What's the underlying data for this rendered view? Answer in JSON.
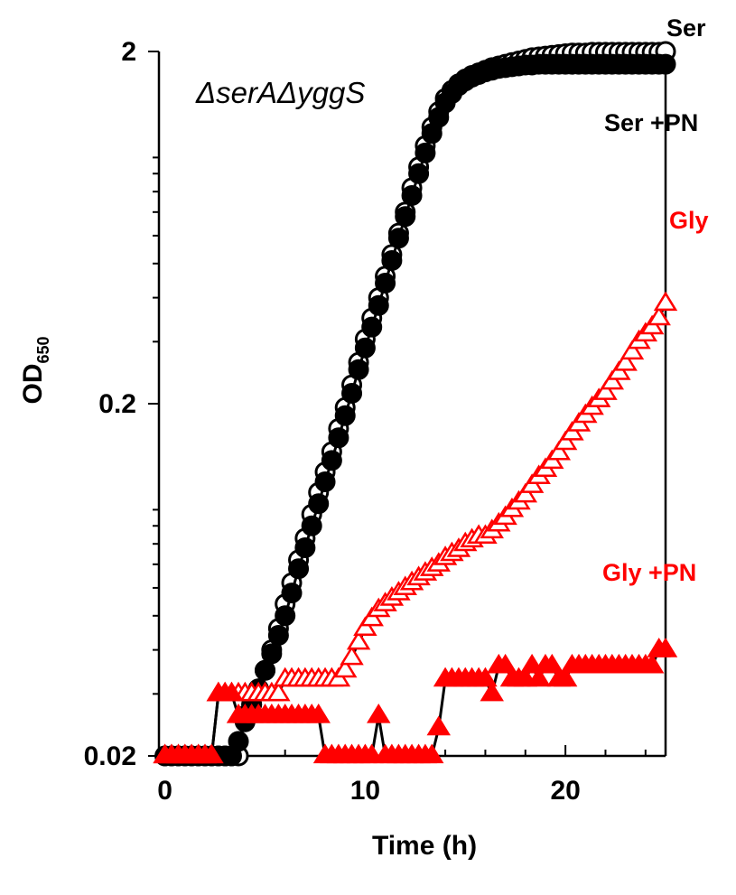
{
  "chart_data": {
    "type": "line",
    "title": "ΔserAΔyggS",
    "xlabel": "Time (h)",
    "ylabel": "OD",
    "ylabel_sub": "650",
    "x_scale": "linear",
    "y_scale": "log",
    "xlim": [
      -0.3,
      25
    ],
    "ylim": [
      0.02,
      2
    ],
    "x_ticks": [
      0,
      10,
      20
    ],
    "x_tick_labels": [
      "0",
      "10",
      "20"
    ],
    "y_ticks": [
      0.02,
      0.2,
      2
    ],
    "y_tick_labels": [
      "0.02",
      "0.2",
      "2"
    ],
    "grid": false,
    "legend": "none",
    "series": [
      {
        "name": "Ser",
        "marker": "open-circle",
        "color": "#000000",
        "x": [
          0,
          0.33,
          0.67,
          1,
          1.33,
          1.67,
          2,
          2.33,
          2.67,
          3,
          3.33,
          3.67,
          4,
          4.33,
          4.67,
          5,
          5.33,
          5.67,
          6,
          6.33,
          6.67,
          7,
          7.33,
          7.67,
          8,
          8.33,
          8.67,
          9,
          9.33,
          9.67,
          10,
          10.33,
          10.67,
          11,
          11.33,
          11.67,
          12,
          12.33,
          12.67,
          13,
          13.33,
          13.67,
          14,
          14.33,
          14.67,
          15,
          15.33,
          15.67,
          16,
          16.33,
          16.67,
          17,
          17.33,
          17.67,
          18,
          18.33,
          18.67,
          19,
          19.33,
          19.67,
          20,
          20.33,
          20.67,
          21,
          21.33,
          21.67,
          22,
          22.33,
          22.67,
          23,
          23.33,
          23.67,
          24,
          24.33,
          24.67,
          25
        ],
        "y": [
          0.02,
          0.02,
          0.02,
          0.02,
          0.02,
          0.02,
          0.02,
          0.02,
          0.02,
          0.02,
          0.02,
          0.02,
          0.026,
          0.028,
          0.031,
          0.035,
          0.04,
          0.046,
          0.054,
          0.062,
          0.072,
          0.083,
          0.097,
          0.112,
          0.128,
          0.146,
          0.17,
          0.195,
          0.226,
          0.262,
          0.305,
          0.35,
          0.4,
          0.46,
          0.53,
          0.61,
          0.7,
          0.82,
          0.94,
          1.08,
          1.22,
          1.35,
          1.47,
          1.55,
          1.62,
          1.67,
          1.71,
          1.74,
          1.77,
          1.8,
          1.82,
          1.84,
          1.86,
          1.88,
          1.9,
          1.92,
          1.93,
          1.94,
          1.95,
          1.96,
          1.97,
          1.98,
          1.98,
          1.98,
          1.99,
          1.99,
          1.99,
          1.99,
          1.99,
          1.99,
          1.99,
          1.99,
          1.99,
          1.99,
          1.99,
          2.0
        ]
      },
      {
        "name": "Ser +PN",
        "marker": "filled-circle",
        "color": "#000000",
        "x": [
          0,
          0.33,
          0.67,
          1,
          1.33,
          1.67,
          2,
          2.33,
          2.67,
          3,
          3.33,
          3.67,
          4,
          4.33,
          4.67,
          5,
          5.33,
          5.67,
          6,
          6.33,
          6.67,
          7,
          7.33,
          7.67,
          8,
          8.33,
          8.67,
          9,
          9.33,
          9.67,
          10,
          10.33,
          10.67,
          11,
          11.33,
          11.67,
          12,
          12.33,
          12.67,
          13,
          13.33,
          13.67,
          14,
          14.33,
          14.67,
          15,
          15.33,
          15.67,
          16,
          16.33,
          16.67,
          17,
          17.33,
          17.67,
          18,
          18.33,
          18.67,
          19,
          19.33,
          19.67,
          20,
          20.33,
          20.67,
          21,
          21.33,
          21.67,
          22,
          22.33,
          22.67,
          23,
          23.33,
          23.67,
          24,
          24.33,
          24.67,
          25
        ],
        "y": [
          0.02,
          0.02,
          0.02,
          0.02,
          0.02,
          0.02,
          0.02,
          0.02,
          0.02,
          0.02,
          0.02,
          0.022,
          0.025,
          0.028,
          0.031,
          0.035,
          0.039,
          0.044,
          0.05,
          0.058,
          0.068,
          0.078,
          0.09,
          0.104,
          0.12,
          0.138,
          0.16,
          0.185,
          0.214,
          0.25,
          0.288,
          0.33,
          0.38,
          0.44,
          0.51,
          0.59,
          0.68,
          0.78,
          0.9,
          1.03,
          1.17,
          1.3,
          1.43,
          1.52,
          1.6,
          1.65,
          1.69,
          1.72,
          1.75,
          1.77,
          1.79,
          1.8,
          1.81,
          1.82,
          1.83,
          1.83,
          1.84,
          1.84,
          1.84,
          1.84,
          1.84,
          1.84,
          1.84,
          1.84,
          1.84,
          1.84,
          1.84,
          1.84,
          1.84,
          1.84,
          1.84,
          1.84,
          1.84,
          1.84,
          1.84,
          1.84
        ]
      },
      {
        "name": "Gly",
        "marker": "open-triangle",
        "color": "#ff0000",
        "x": [
          0,
          0.33,
          0.67,
          1,
          1.33,
          1.67,
          2,
          2.33,
          2.67,
          3,
          3.33,
          3.67,
          4,
          4.33,
          4.67,
          5,
          5.33,
          5.67,
          6,
          6.33,
          6.67,
          7,
          7.33,
          7.67,
          8,
          8.33,
          8.67,
          9,
          9.33,
          9.67,
          10,
          10.33,
          10.67,
          11,
          11.33,
          11.67,
          12,
          12.33,
          12.67,
          13,
          13.33,
          13.67,
          14,
          14.33,
          14.67,
          15,
          15.33,
          15.67,
          16,
          16.33,
          16.67,
          17,
          17.33,
          17.67,
          18,
          18.33,
          18.67,
          19,
          19.33,
          19.67,
          20,
          20.33,
          20.67,
          21,
          21.33,
          21.67,
          22,
          22.33,
          22.67,
          23,
          23.33,
          23.67,
          24,
          24.33,
          24.67,
          25
        ],
        "y": [
          0.02,
          0.02,
          0.02,
          0.02,
          0.02,
          0.02,
          0.02,
          0.02,
          0.03,
          0.03,
          0.03,
          0.03,
          0.03,
          0.03,
          0.03,
          0.03,
          0.03,
          0.03,
          0.033,
          0.033,
          0.033,
          0.033,
          0.033,
          0.033,
          0.033,
          0.033,
          0.033,
          0.035,
          0.038,
          0.042,
          0.046,
          0.049,
          0.052,
          0.054,
          0.056,
          0.058,
          0.06,
          0.062,
          0.064,
          0.066,
          0.068,
          0.07,
          0.073,
          0.075,
          0.077,
          0.08,
          0.082,
          0.084,
          0.084,
          0.087,
          0.091,
          0.095,
          0.1,
          0.105,
          0.11,
          0.117,
          0.124,
          0.13,
          0.137,
          0.145,
          0.155,
          0.165,
          0.175,
          0.185,
          0.195,
          0.205,
          0.215,
          0.23,
          0.245,
          0.26,
          0.28,
          0.3,
          0.315,
          0.33,
          0.35,
          0.385
        ]
      },
      {
        "name": "Gly +PN",
        "marker": "filled-triangle",
        "color": "#ff0000",
        "x": [
          0,
          0.33,
          0.67,
          1,
          1.33,
          1.67,
          2,
          2.33,
          2.67,
          3,
          3.33,
          3.67,
          4,
          4.33,
          4.67,
          5,
          5.33,
          5.67,
          6,
          6.33,
          6.67,
          7,
          7.33,
          7.67,
          8,
          8.33,
          8.67,
          9,
          9.33,
          9.67,
          10,
          10.33,
          10.67,
          11,
          11.33,
          11.67,
          12,
          12.33,
          12.67,
          13,
          13.33,
          13.67,
          14,
          14.33,
          14.67,
          15,
          15.33,
          15.67,
          16,
          16.33,
          16.67,
          17,
          17.33,
          17.67,
          18,
          18.33,
          18.67,
          19,
          19.33,
          19.67,
          20,
          20.33,
          20.67,
          21,
          21.33,
          21.67,
          22,
          22.33,
          22.67,
          23,
          23.33,
          23.67,
          24,
          24.33,
          24.67,
          25
        ],
        "y": [
          0.02,
          0.02,
          0.02,
          0.02,
          0.02,
          0.02,
          0.02,
          0.02,
          0.03,
          0.03,
          0.03,
          0.026,
          0.026,
          0.026,
          0.026,
          0.026,
          0.026,
          0.026,
          0.026,
          0.026,
          0.026,
          0.026,
          0.026,
          0.026,
          0.02,
          0.02,
          0.02,
          0.02,
          0.02,
          0.02,
          0.02,
          0.02,
          0.026,
          0.02,
          0.02,
          0.02,
          0.02,
          0.02,
          0.02,
          0.02,
          0.02,
          0.024,
          0.033,
          0.033,
          0.033,
          0.033,
          0.033,
          0.033,
          0.033,
          0.03,
          0.036,
          0.036,
          0.033,
          0.033,
          0.033,
          0.036,
          0.033,
          0.036,
          0.036,
          0.033,
          0.033,
          0.036,
          0.036,
          0.036,
          0.036,
          0.036,
          0.036,
          0.036,
          0.036,
          0.036,
          0.036,
          0.036,
          0.036,
          0.036,
          0.04,
          0.04
        ]
      }
    ],
    "annotations": {
      "strain": "ΔserAΔyggS",
      "label_ser": "Ser",
      "label_ser_pn": "Ser +PN",
      "label_gly": "Gly",
      "label_gly_pn": "Gly +PN"
    },
    "colors": {
      "black": "#000000",
      "red": "#ff0000"
    }
  }
}
